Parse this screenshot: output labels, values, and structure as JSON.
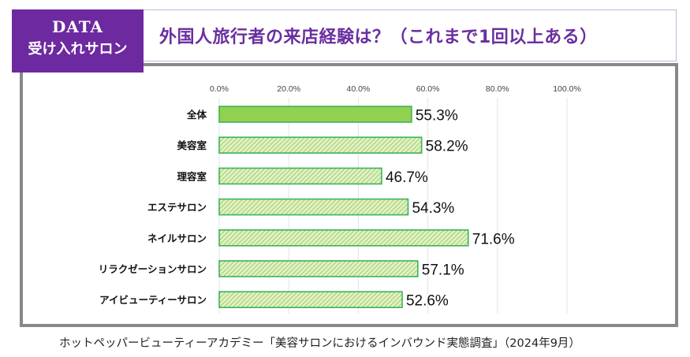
{
  "badge": {
    "line1": "DATA",
    "line2": "受け入れサロン",
    "color": "#6d2aa0"
  },
  "header": {
    "title": "外国人旅行者の来店経験は？（これまで1回以上ある）",
    "title_color": "#6a2fa0"
  },
  "source": "ホットペッパービューティーアカデミー「美容サロンにおけるインバウンド実態調査」（2024年9月）",
  "chart_data": {
    "type": "bar",
    "orientation": "horizontal",
    "title": "外国人旅行者の来店経験は？（これまで1回以上ある）",
    "xlabel": "",
    "ylabel": "",
    "xlim": [
      0,
      100
    ],
    "grid": true,
    "tick_labels": [
      "0.0%",
      "20.0%",
      "40.0%",
      "60.0%",
      "80.0%",
      "100.0%"
    ],
    "ticks": [
      0,
      20,
      40,
      60,
      80,
      100
    ],
    "categories": [
      "全体",
      "美容室",
      "理容室",
      "エステサロン",
      "ネイルサロン",
      "リラクゼーションサロン",
      "アイビューティーサロン"
    ],
    "values": [
      55.3,
      58.2,
      46.7,
      54.3,
      71.6,
      57.1,
      52.6
    ],
    "data_labels": [
      "55.3%",
      "58.2%",
      "46.7%",
      "54.3%",
      "71.6%",
      "57.1%",
      "52.6%"
    ],
    "styles": [
      "solid",
      "hatched",
      "hatched",
      "hatched",
      "hatched",
      "hatched",
      "hatched"
    ],
    "colors": {
      "solid_fill": "#92d050",
      "hatch_fill": "#e2f0c8",
      "hatch_line": "#8cc84b",
      "border": "#3cb45a",
      "grid": "#e3e3e3"
    }
  }
}
